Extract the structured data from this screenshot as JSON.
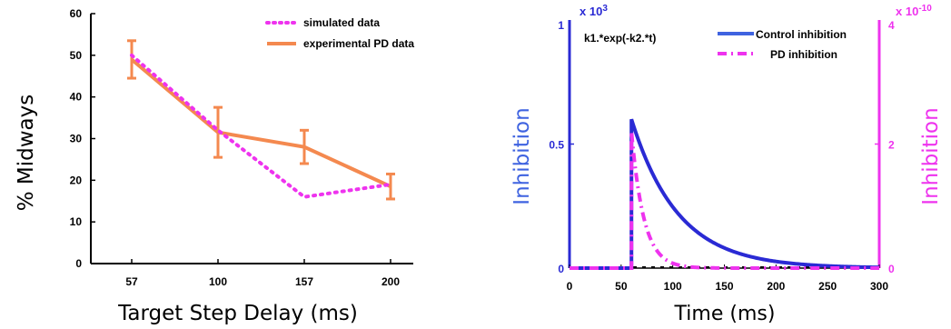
{
  "chart_data": [
    {
      "type": "line",
      "xlabel": "Target Step Delay (ms)",
      "ylabel": "% Midways",
      "categories": [
        "57",
        "100",
        "157",
        "200"
      ],
      "ylim": [
        0,
        60
      ],
      "yticks": [
        "0",
        "10",
        "20",
        "30",
        "40",
        "50",
        "60"
      ],
      "legend_position": "top-right",
      "grid": false,
      "series": [
        {
          "name": "simulated data",
          "color": "#ee33ee",
          "style": "dotted",
          "values": [
            50,
            32,
            16,
            19
          ]
        },
        {
          "name": "experimental PD data",
          "color": "#f4894f",
          "style": "solid",
          "values": [
            49,
            31.5,
            28,
            18.5
          ],
          "errors": [
            4.5,
            6,
            4,
            3
          ]
        }
      ]
    },
    {
      "type": "line",
      "xlabel": "Time (ms)",
      "ylabel_left": "Inhibition",
      "ylabel_right": "Inhibition",
      "xlim": [
        0,
        300
      ],
      "xticks": [
        "0",
        "50",
        "100",
        "150",
        "200",
        "250",
        "300"
      ],
      "ylim_left": [
        0,
        1
      ],
      "yticks_left": [
        "0",
        "0.5"
      ],
      "yticks_left_top": "1",
      "left_scale": "x 10",
      "left_exp": "3",
      "ylim_right": [
        0,
        4
      ],
      "yticks_right": [
        "0",
        "2"
      ],
      "yticks_right_top": "4",
      "right_scale": "x 10",
      "right_exp": "-10",
      "annotation": "k1.*exp(-k2.*t)",
      "left_color": "#3f63e0",
      "right_color": "#ee33ee",
      "legend_position": "top-right",
      "series": [
        {
          "name": "Control inhibition",
          "color": "#2a2ad4",
          "style": "solid",
          "onset": 60,
          "peak": 0.6,
          "tau": 45
        },
        {
          "name": "PD inhibition",
          "color": "#ee33ee",
          "style": "dashdot",
          "onset": 60,
          "peak": 2.2,
          "tau": 12
        }
      ]
    }
  ]
}
